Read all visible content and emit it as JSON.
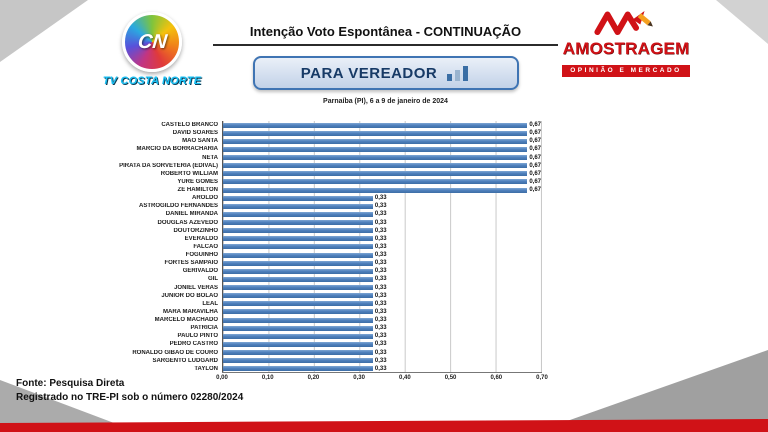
{
  "header": {
    "title": "Intenção Voto Espontânea - CONTINUAÇÃO",
    "office_box": "PARA VEREADOR",
    "date_line": "Parnaíba (PI), 6 a 9 de janeiro de 2024"
  },
  "logos": {
    "tv": {
      "initials": "CN",
      "name": "TV COSTA NORTE"
    },
    "institute": {
      "name": "AMOSTRAGEM",
      "tagline": "OPINIÃO E MERCADO"
    }
  },
  "chart_data": {
    "type": "bar",
    "orientation": "horizontal",
    "title": "Intenção Voto Espontânea - CONTINUAÇÃO (PARA VEREADOR)",
    "xlim": [
      0,
      0.7
    ],
    "x_ticks": [
      "0,00",
      "0,10",
      "0,20",
      "0,30",
      "0,40",
      "0,50",
      "0,60",
      "0,70"
    ],
    "grid": true,
    "bar_color": "#4f81bd",
    "categories": [
      "CASTELO BRANCO",
      "DAVID SOARES",
      "MÃO SANTA",
      "MÁRCIO DA BORRACHARIA",
      "NETA",
      "PIRATA DA SORVETERIA (EDIVAL)",
      "ROBERTO WILLIAM",
      "YURE GOMES",
      "ZÉ HAMILTON",
      "AROLDO",
      "ASTROGILDO FERNANDES",
      "DANIEL MIRANDA",
      "DOUGLAS AZEVEDO",
      "DOUTORZINHO",
      "EVERALDO",
      "FALCÃO",
      "FOGUINHO",
      "FORTES SAMPAIO",
      "GERIVALDO",
      "GIL",
      "JONIEL VERAS",
      "JÚNIOR DO BOLÃO",
      "LEAL",
      "MARA MARAVILHA",
      "MARCELO MACHADO",
      "PATRÍCIA",
      "PAULO PINTO",
      "PEDRO CASTRO",
      "RONALDO GIBÃO DE COURO",
      "SARGENTO LUDGARD",
      "TAYLON"
    ],
    "values": [
      0.67,
      0.67,
      0.67,
      0.67,
      0.67,
      0.67,
      0.67,
      0.67,
      0.67,
      0.33,
      0.33,
      0.33,
      0.33,
      0.33,
      0.33,
      0.33,
      0.33,
      0.33,
      0.33,
      0.33,
      0.33,
      0.33,
      0.33,
      0.33,
      0.33,
      0.33,
      0.33,
      0.33,
      0.33,
      0.33,
      0.33
    ],
    "value_labels": [
      "0,67",
      "0,67",
      "0,67",
      "0,67",
      "0,67",
      "0,67",
      "0,67",
      "0,67",
      "0,67",
      "0,33",
      "0,33",
      "0,33",
      "0,33",
      "0,33",
      "0,33",
      "0,33",
      "0,33",
      "0,33",
      "0,33",
      "0,33",
      "0,33",
      "0,33",
      "0,33",
      "0,33",
      "0,33",
      "0,33",
      "0,33",
      "0,33",
      "0,33",
      "0,33",
      "0,33"
    ]
  },
  "footer": {
    "line1": "Fonte: Pesquisa Direta",
    "line2": "Registrado no TRE-PI sob o número 02280/2024"
  },
  "colors": {
    "accent_red": "#d01217",
    "bar_blue": "#4f81bd",
    "box_border_blue": "#3f74b3"
  }
}
